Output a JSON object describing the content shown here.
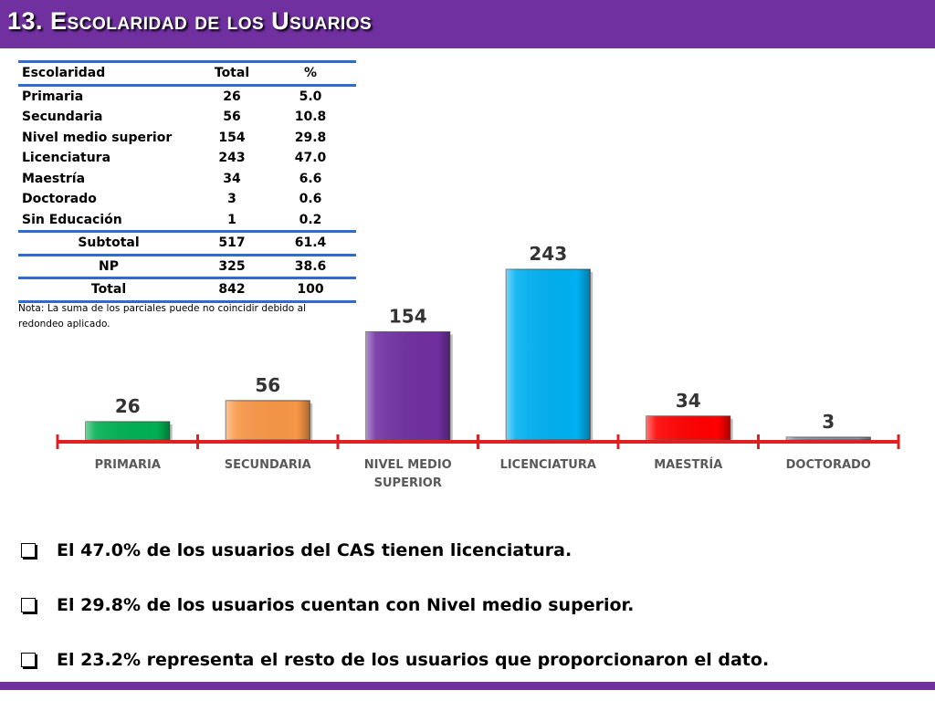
{
  "title": "13. Escolaridad de los Usuarios",
  "table": {
    "headers": [
      "Escolaridad",
      "Total",
      "%"
    ],
    "rows": [
      {
        "label": "Primaria",
        "total": "26",
        "pct": "5.0"
      },
      {
        "label": "Secundaria",
        "total": "56",
        "pct": "10.8"
      },
      {
        "label": "Nivel medio superior",
        "total": "154",
        "pct": "29.8"
      },
      {
        "label": "Licenciatura",
        "total": "243",
        "pct": "47.0"
      },
      {
        "label": "Maestría",
        "total": "34",
        "pct": "6.6"
      },
      {
        "label": "Doctorado",
        "total": "3",
        "pct": "0.6"
      },
      {
        "label": "Sin Educación",
        "total": "1",
        "pct": "0.2"
      }
    ],
    "subtotal": {
      "label": "Subtotal",
      "total": "517",
      "pct": "61.4"
    },
    "np": {
      "label": "NP",
      "total": "325",
      "pct": "38.6"
    },
    "total": {
      "label": "Total",
      "total": "842",
      "pct": "100"
    }
  },
  "note": "Nota: La suma de los parciales puede no coincidir debido al redondeo aplicado.",
  "chart_data": {
    "type": "bar",
    "categories": [
      "PRIMARIA",
      "SECUNDARIA",
      "NIVEL MEDIO SUPERIOR",
      "LICENCIATURA",
      "MAESTRÍA",
      "DOCTORADO"
    ],
    "category_lines": [
      [
        "PRIMARIA"
      ],
      [
        "SECUNDARIA"
      ],
      [
        "NIVEL MEDIO",
        "SUPERIOR"
      ],
      [
        "LICENCIATURA"
      ],
      [
        "MAESTRÍA"
      ],
      [
        "DOCTORADO"
      ]
    ],
    "values": [
      26,
      56,
      154,
      243,
      34,
      3
    ],
    "colors": [
      "#00b050",
      "#f79646",
      "#7030a0",
      "#00b0f0",
      "#ff0000",
      "#8497b0"
    ],
    "axis_color": "#e02020",
    "title": "",
    "xlabel": "",
    "ylabel": "",
    "ylim": [
      0,
      260
    ],
    "grid": false,
    "legend": "none"
  },
  "bullets": [
    "El 47.0% de los usuarios del CAS tienen licenciatura.",
    "El 29.8% de los usuarios cuentan con Nivel medio superior.",
    "El  23.2% representa el resto de los usuarios que proporcionaron el dato."
  ]
}
